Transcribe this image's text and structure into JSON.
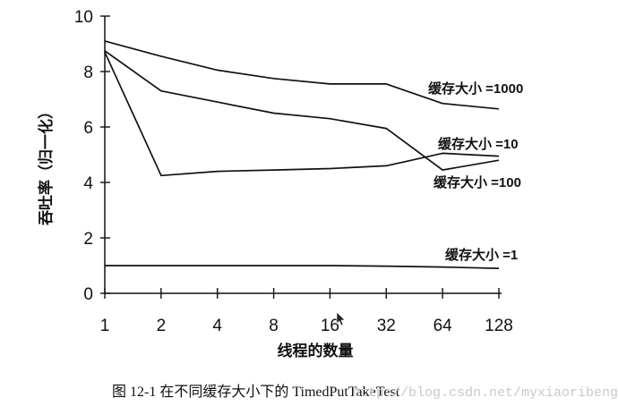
{
  "chart_data": {
    "type": "line",
    "title": "",
    "xlabel": "线程的数量",
    "ylabel": "吞吐率（归一化）",
    "categories": [
      "1",
      "2",
      "4",
      "8",
      "16",
      "32",
      "64",
      "128"
    ],
    "ylim": [
      0,
      10
    ],
    "yticks": [
      "0",
      "2",
      "4",
      "6",
      "8",
      "10"
    ],
    "grid": false,
    "legend": "inline labels at right end of each line",
    "series": [
      {
        "name": "缓存大小 =1000",
        "values": [
          9.1,
          8.55,
          8.05,
          7.75,
          7.55,
          7.55,
          6.85,
          6.65
        ]
      },
      {
        "name": "缓存大小 =10",
        "values": [
          8.7,
          4.25,
          4.4,
          4.45,
          4.5,
          4.6,
          5.05,
          4.95
        ]
      },
      {
        "name": "缓存大小 =100",
        "values": [
          8.75,
          7.3,
          6.9,
          6.5,
          6.3,
          5.95,
          4.45,
          4.8
        ]
      },
      {
        "name": "缓存大小 =1",
        "values": [
          1.0,
          1.0,
          1.0,
          1.0,
          1.0,
          0.98,
          0.95,
          0.9
        ]
      }
    ]
  },
  "caption": "图 12-1    在不同缓存大小下的 TimedPutTakeTest",
  "watermark": "http://blog.csdn.net/myxiaoribeng"
}
